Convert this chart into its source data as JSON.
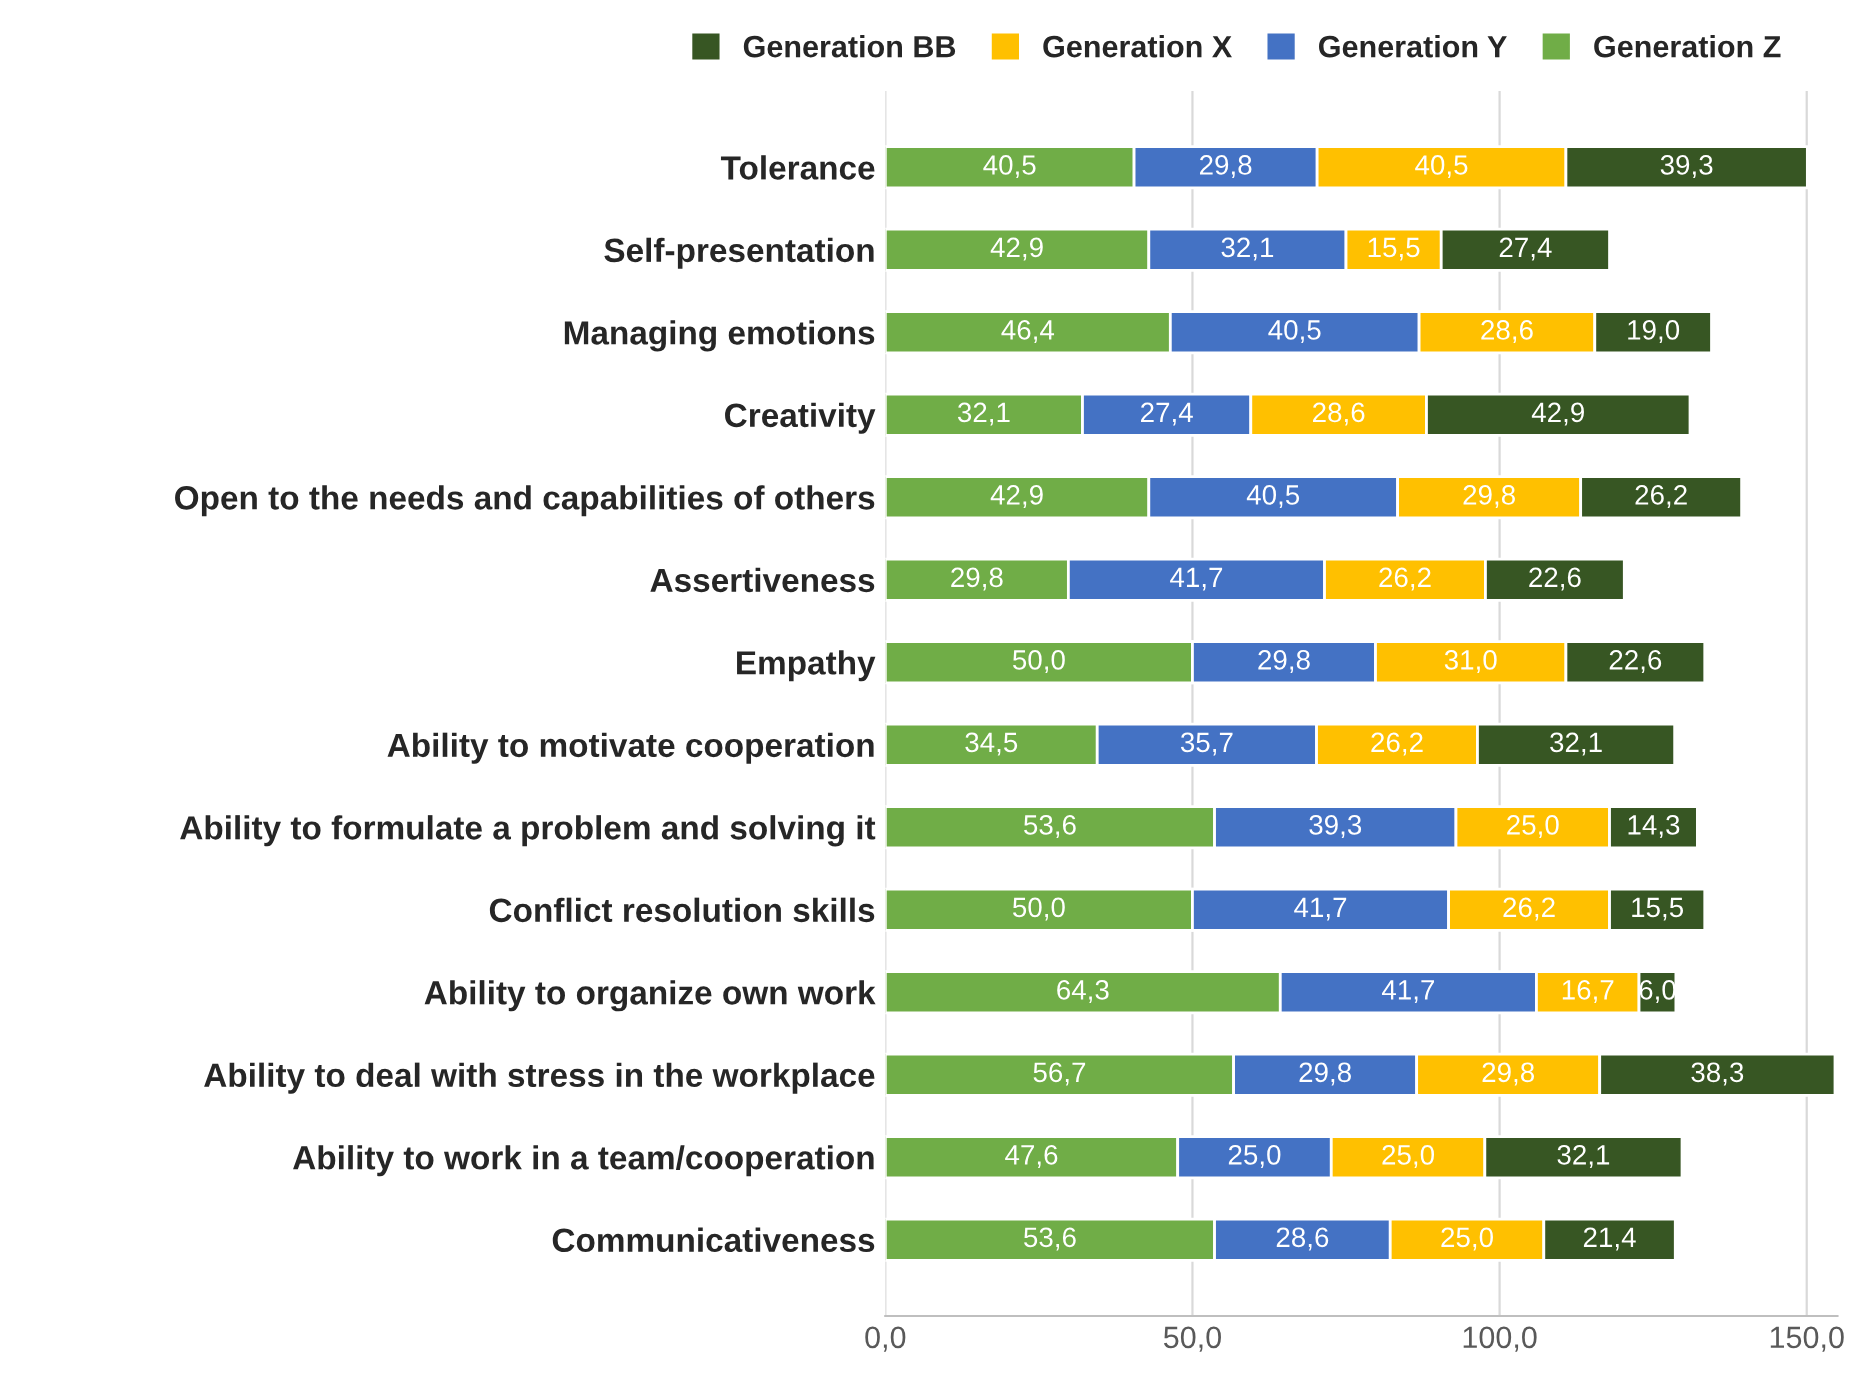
{
  "chart_data": {
    "type": "bar",
    "orientation": "horizontal",
    "stacked": true,
    "categories": [
      "Tolerance",
      "Self-presentation",
      "Managing emotions",
      "Creativity",
      "Open to the needs and capabilities of others",
      "Assertiveness",
      "Empathy",
      "Ability to motivate cooperation",
      "Ability to formulate a problem and solving it",
      "Conflict resolution skills",
      "Ability to organize own work",
      "Ability to deal with stress in the workplace",
      "Ability to work in a team/cooperation",
      "Communicativeness"
    ],
    "series": [
      {
        "name": "Generation Z",
        "color": "#70ad47",
        "values": [
          40.5,
          42.9,
          46.4,
          32.1,
          42.9,
          29.8,
          50.0,
          34.5,
          53.6,
          50.0,
          64.3,
          56.7,
          47.6,
          53.6
        ],
        "value_labels": [
          "40,5",
          "42,9",
          "46,4",
          "32,1",
          "42,9",
          "29,8",
          "50,0",
          "34,5",
          "53,6",
          "50,0",
          "64,3",
          "56,7",
          "47,6",
          "53,6"
        ]
      },
      {
        "name": "Generation Y",
        "color": "#4472c4",
        "values": [
          29.8,
          32.1,
          40.5,
          27.4,
          40.5,
          41.7,
          29.8,
          35.7,
          39.3,
          41.7,
          41.7,
          29.8,
          25.0,
          28.6
        ],
        "value_labels": [
          "29,8",
          "32,1",
          "40,5",
          "27,4",
          "40,5",
          "41,7",
          "29,8",
          "35,7",
          "39,3",
          "41,7",
          "41,7",
          "29,8",
          "25,0",
          "28,6"
        ]
      },
      {
        "name": "Generation X",
        "color": "#ffc000",
        "values": [
          40.5,
          15.5,
          28.6,
          28.6,
          29.8,
          26.2,
          31.0,
          26.2,
          25.0,
          26.2,
          16.7,
          29.8,
          25.0,
          25.0
        ],
        "value_labels": [
          "40,5",
          "15,5",
          "28,6",
          "28,6",
          "29,8",
          "26,2",
          "31,0",
          "26,2",
          "25,0",
          "26,2",
          "16,7",
          "29,8",
          "25,0",
          "25,0"
        ]
      },
      {
        "name": "Generation BB",
        "color": "#375623",
        "values": [
          39.3,
          27.4,
          19.0,
          42.9,
          26.2,
          22.6,
          22.6,
          32.1,
          14.3,
          15.5,
          6.0,
          38.3,
          32.1,
          21.4
        ],
        "value_labels": [
          "39,3",
          "27,4",
          "19,0",
          "42,9",
          "26,2",
          "22,6",
          "22,6",
          "32,1",
          "14,3",
          "15,5",
          "6,0",
          "38,3",
          "32,1",
          "21,4"
        ]
      }
    ],
    "xlim": [
      0,
      155
    ],
    "xticks": [
      {
        "value": 0,
        "label": "0,0"
      },
      {
        "value": 50,
        "label": "50,0"
      },
      {
        "value": 100,
        "label": "100,0"
      },
      {
        "value": 150,
        "label": "150,0"
      }
    ],
    "grid": "x",
    "legend": "top"
  }
}
